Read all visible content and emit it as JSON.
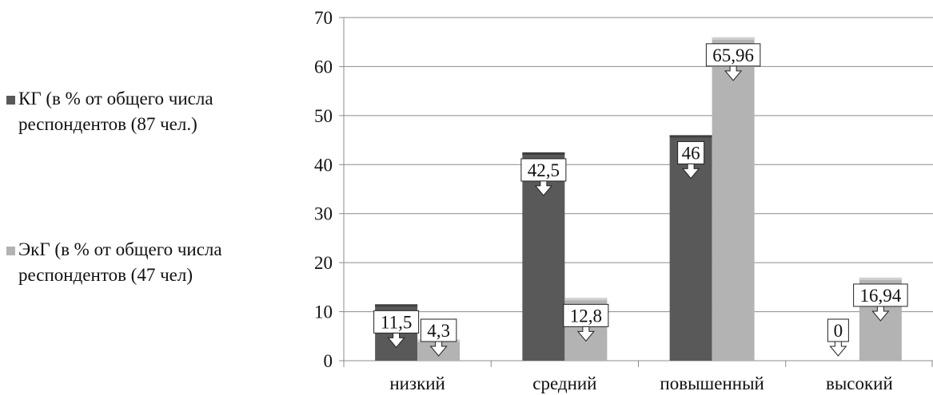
{
  "chart_data": {
    "type": "bar",
    "title": "",
    "xlabel": "",
    "ylabel": "",
    "categories": [
      "низкий",
      "средний",
      "повышенный",
      "высокий"
    ],
    "series": [
      {
        "name": "КГ (в % от общего числа респондентов (87 чел.)",
        "values": [
          11.5,
          42.5,
          46,
          0
        ],
        "labels": [
          "11,5",
          "42,5",
          "46",
          "0"
        ],
        "color": "#595959"
      },
      {
        "name": "ЭкГ (в % от общего числа респондентов (47 чел)",
        "values": [
          4.3,
          12.8,
          65.96,
          16.94
        ],
        "labels": [
          "4,3",
          "12,8",
          "65,96",
          "16,94"
        ],
        "color": "#b3b3b3"
      }
    ],
    "ylim": [
      0,
      70
    ],
    "yticks": [
      0,
      10,
      20,
      30,
      40,
      50,
      60,
      70
    ],
    "grid": true,
    "legend_position": "left"
  }
}
